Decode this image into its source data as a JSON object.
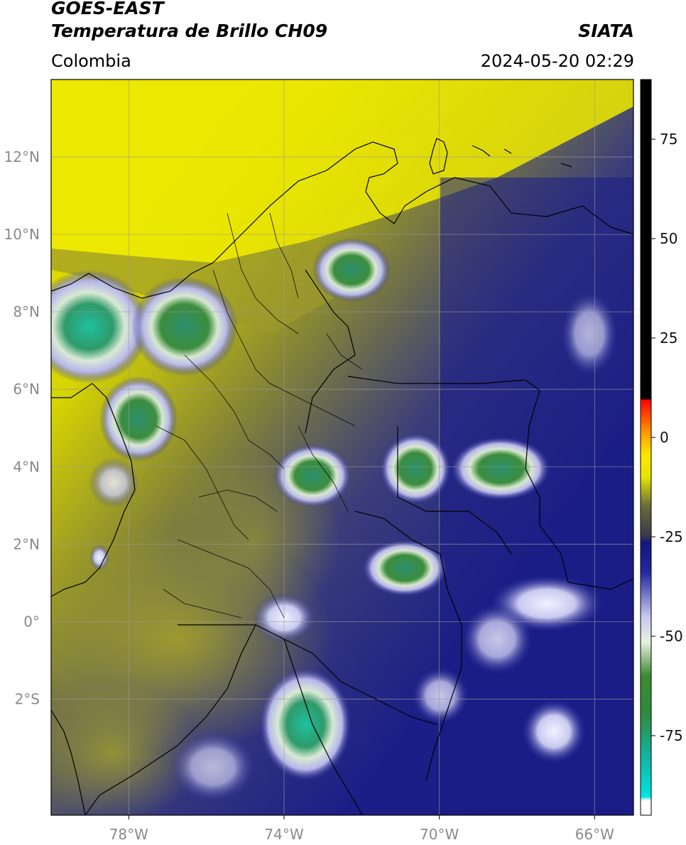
{
  "header": {
    "satellite": "GOES-EAST",
    "product": "Temperatura de Brillo CH09",
    "organization": "SIATA",
    "region": "Colombia",
    "datetime": "2024-05-20 02:29"
  },
  "map": {
    "lon_range": [
      -80,
      -65
    ],
    "lat_range": [
      -5,
      14
    ],
    "x_ticks": [
      {
        "value": -78,
        "label": "78°W"
      },
      {
        "value": -74,
        "label": "74°W"
      },
      {
        "value": -70,
        "label": "70°W"
      },
      {
        "value": -66,
        "label": "66°W"
      }
    ],
    "y_ticks": [
      {
        "value": 12,
        "label": "12°N"
      },
      {
        "value": 10,
        "label": "10°N"
      },
      {
        "value": 8,
        "label": "8°N"
      },
      {
        "value": 6,
        "label": "6°N"
      },
      {
        "value": 4,
        "label": "4°N"
      },
      {
        "value": 2,
        "label": "2°N"
      },
      {
        "value": 0,
        "label": "0°"
      },
      {
        "value": -2,
        "label": "2°S"
      }
    ],
    "grid": true
  },
  "colorbar": {
    "range": [
      -95,
      90
    ],
    "ticks": [
      {
        "value": 75,
        "label": "75"
      },
      {
        "value": 50,
        "label": "50"
      },
      {
        "value": 25,
        "label": "25"
      },
      {
        "value": 0,
        "label": "0"
      },
      {
        "value": -25,
        "label": "-25"
      },
      {
        "value": -50,
        "label": "-50"
      },
      {
        "value": -75,
        "label": "-75"
      }
    ]
  }
}
